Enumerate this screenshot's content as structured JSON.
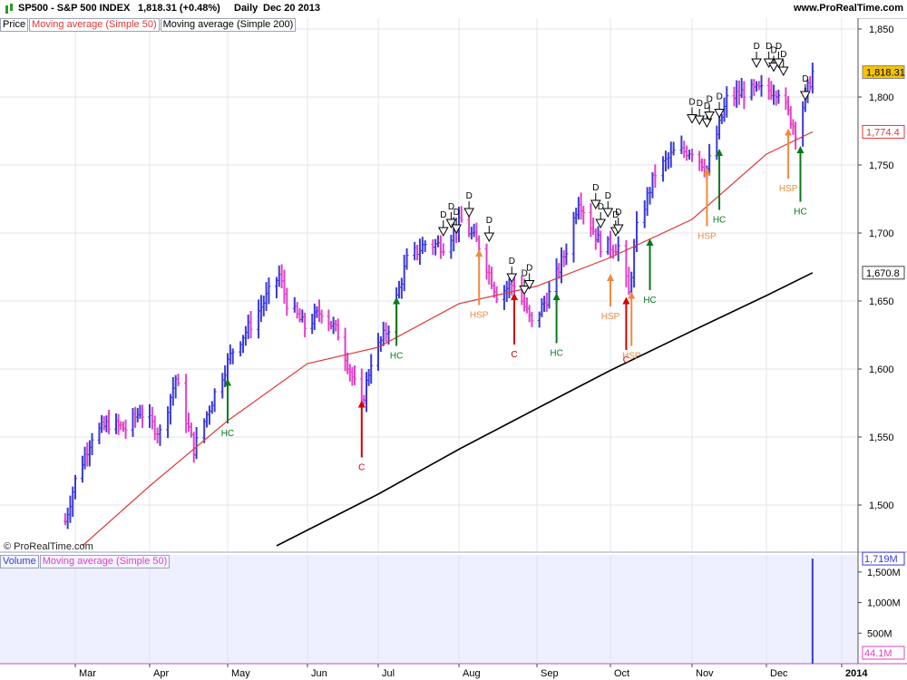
{
  "header": {
    "symbol": "SP500 - S&P 500 INDEX",
    "last": "1,818.31 (+0.48%)",
    "period": "Daily",
    "date": "Dec 20 2013",
    "site": "www.ProRealTime.com"
  },
  "legend": {
    "price": "Price",
    "ma50": "Moving average (Simple 50)",
    "ma200": "Moving average (Simple 200)",
    "volume": "Volume",
    "vol_ma": "Moving average (Simple 50)"
  },
  "watermark": "© ProRealTime.com",
  "colors": {
    "up": "#3a3ad6",
    "down": "#e040c8",
    "ma50": "#e03838",
    "ma200": "#000000",
    "hc": "#0a7a1a",
    "hsp": "#f08a40",
    "c": "#d40000",
    "vol_bg": "#eef0ff",
    "price_bg": "#ffffff"
  },
  "chart_data": [
    {
      "type": "ohlc",
      "y_ticks": [
        "1,850",
        "1,800",
        "1,750",
        "1,700",
        "1,650",
        "1,600",
        "1,550",
        "1,500"
      ],
      "y_tick_values": [
        1850,
        1800,
        1750,
        1700,
        1650,
        1600,
        1550,
        1500
      ],
      "ylim": [
        1466,
        1858
      ],
      "x_tick_labels": [
        "Mar",
        "Apr",
        "May",
        "Jun",
        "Jul",
        "Aug",
        "Sep",
        "Oct",
        "Nov",
        "Dec",
        "2014"
      ],
      "x_tick_dates": [
        "2013-03-01",
        "2013-04-01",
        "2013-05-01",
        "2013-06-01",
        "2013-07-01",
        "2013-08-01",
        "2013-09-01",
        "2013-10-01",
        "2013-11-01",
        "2013-12-01",
        "2014-01-01"
      ],
      "price_labels": [
        {
          "text": "1,818.31",
          "value": 1818.31,
          "kind": "price"
        },
        {
          "text": "1,774.4",
          "value": 1774.4,
          "kind": "ma50"
        },
        {
          "text": "1,670.8",
          "value": 1670.8,
          "kind": "ma200"
        }
      ],
      "closes": [
        {
          "date": "2013-02-25",
          "close": 1488
        },
        {
          "date": "2013-03-01",
          "close": 1518
        },
        {
          "date": "2013-03-08",
          "close": 1551
        },
        {
          "date": "2013-03-15",
          "close": 1560
        },
        {
          "date": "2013-03-22",
          "close": 1556
        },
        {
          "date": "2013-03-28",
          "close": 1569
        },
        {
          "date": "2013-04-05",
          "close": 1553
        },
        {
          "date": "2013-04-11",
          "close": 1593
        },
        {
          "date": "2013-04-18",
          "close": 1541
        },
        {
          "date": "2013-04-26",
          "close": 1582
        },
        {
          "date": "2013-05-03",
          "close": 1614
        },
        {
          "date": "2013-05-10",
          "close": 1633
        },
        {
          "date": "2013-05-21",
          "close": 1669
        },
        {
          "date": "2013-05-24",
          "close": 1649
        },
        {
          "date": "2013-05-31",
          "close": 1631
        },
        {
          "date": "2013-06-07",
          "close": 1643
        },
        {
          "date": "2013-06-14",
          "close": 1626
        },
        {
          "date": "2013-06-24",
          "close": 1573
        },
        {
          "date": "2013-06-28",
          "close": 1606
        },
        {
          "date": "2013-07-05",
          "close": 1631
        },
        {
          "date": "2013-07-12",
          "close": 1680
        },
        {
          "date": "2013-07-19",
          "close": 1692
        },
        {
          "date": "2013-07-26",
          "close": 1691
        },
        {
          "date": "2013-08-02",
          "close": 1709
        },
        {
          "date": "2013-08-09",
          "close": 1691
        },
        {
          "date": "2013-08-16",
          "close": 1655
        },
        {
          "date": "2013-08-23",
          "close": 1663
        },
        {
          "date": "2013-08-30",
          "close": 1633
        },
        {
          "date": "2013-09-06",
          "close": 1655
        },
        {
          "date": "2013-09-13",
          "close": 1688
        },
        {
          "date": "2013-09-18",
          "close": 1725
        },
        {
          "date": "2013-09-27",
          "close": 1691
        },
        {
          "date": "2013-10-04",
          "close": 1690
        },
        {
          "date": "2013-10-08",
          "close": 1655
        },
        {
          "date": "2013-10-11",
          "close": 1703
        },
        {
          "date": "2013-10-18",
          "close": 1744
        },
        {
          "date": "2013-10-25",
          "close": 1759
        },
        {
          "date": "2013-11-01",
          "close": 1761
        },
        {
          "date": "2013-11-07",
          "close": 1747
        },
        {
          "date": "2013-11-15",
          "close": 1798
        },
        {
          "date": "2013-11-22",
          "close": 1804
        },
        {
          "date": "2013-11-29",
          "close": 1805
        },
        {
          "date": "2013-12-06",
          "close": 1805
        },
        {
          "date": "2013-12-13",
          "close": 1775
        },
        {
          "date": "2013-12-20",
          "close": 1818
        }
      ],
      "ma50": [
        {
          "date": "2013-03-04",
          "value": 1470
        },
        {
          "date": "2013-04-01",
          "value": 1514
        },
        {
          "date": "2013-05-01",
          "value": 1562
        },
        {
          "date": "2013-06-01",
          "value": 1604
        },
        {
          "date": "2013-07-01",
          "value": 1616
        },
        {
          "date": "2013-08-01",
          "value": 1648
        },
        {
          "date": "2013-09-01",
          "value": 1661
        },
        {
          "date": "2013-10-01",
          "value": 1682
        },
        {
          "date": "2013-11-01",
          "value": 1710
        },
        {
          "date": "2013-12-01",
          "value": 1758
        },
        {
          "date": "2013-12-20",
          "value": 1774.4
        }
      ],
      "ma200": [
        {
          "date": "2013-05-20",
          "value": 1470
        },
        {
          "date": "2013-07-01",
          "value": 1508
        },
        {
          "date": "2013-08-01",
          "value": 1541
        },
        {
          "date": "2013-09-01",
          "value": 1571
        },
        {
          "date": "2013-10-01",
          "value": 1599
        },
        {
          "date": "2013-11-01",
          "value": 1628
        },
        {
          "date": "2013-12-01",
          "value": 1654
        },
        {
          "date": "2013-12-20",
          "value": 1670.8
        }
      ],
      "d_markers": [
        {
          "date": "2013-07-26",
          "price": 1698
        },
        {
          "date": "2013-07-29",
          "price": 1704
        },
        {
          "date": "2013-07-31",
          "price": 1700
        },
        {
          "date": "2013-08-05",
          "price": 1712
        },
        {
          "date": "2013-08-13",
          "price": 1694
        },
        {
          "date": "2013-08-22",
          "price": 1664
        },
        {
          "date": "2013-08-27",
          "price": 1655
        },
        {
          "date": "2013-08-29",
          "price": 1659
        },
        {
          "date": "2013-09-25",
          "price": 1718
        },
        {
          "date": "2013-09-27",
          "price": 1704
        },
        {
          "date": "2013-09-30",
          "price": 1712
        },
        {
          "date": "2013-10-03",
          "price": 1698
        },
        {
          "date": "2013-10-04",
          "price": 1700
        },
        {
          "date": "2013-11-01",
          "price": 1781
        },
        {
          "date": "2013-11-04",
          "price": 1780
        },
        {
          "date": "2013-11-07",
          "price": 1778
        },
        {
          "date": "2013-11-08",
          "price": 1783
        },
        {
          "date": "2013-11-12",
          "price": 1785
        },
        {
          "date": "2013-11-27",
          "price": 1822
        },
        {
          "date": "2013-12-02",
          "price": 1822
        },
        {
          "date": "2013-12-04",
          "price": 1819
        },
        {
          "date": "2013-12-06",
          "price": 1822
        },
        {
          "date": "2013-12-08",
          "price": 1816
        },
        {
          "date": "2013-12-17",
          "price": 1798
        }
      ],
      "arrows": [
        {
          "date": "2013-05-01",
          "label": "HC",
          "kind": "hc",
          "tip": 1593,
          "tail": 1560
        },
        {
          "date": "2013-06-24",
          "label": "C",
          "kind": "c",
          "tip": 1577,
          "tail": 1535
        },
        {
          "date": "2013-07-08",
          "label": "HC",
          "kind": "hc",
          "tip": 1653,
          "tail": 1617
        },
        {
          "date": "2013-08-09",
          "label": "HSP",
          "kind": "hsp",
          "tip": 1688,
          "tail": 1647
        },
        {
          "date": "2013-08-23",
          "label": "C",
          "kind": "c",
          "tip": 1656,
          "tail": 1618
        },
        {
          "date": "2013-09-09",
          "label": "HC",
          "kind": "hc",
          "tip": 1656,
          "tail": 1619
        },
        {
          "date": "2013-10-01",
          "label": "HSP",
          "kind": "hsp",
          "tip": 1670,
          "tail": 1646
        },
        {
          "date": "2013-10-07",
          "label": "C",
          "kind": "c",
          "tip": 1653,
          "tail": 1614
        },
        {
          "date": "2013-10-09",
          "label": "HSP",
          "kind": "hsp",
          "tip": 1657,
          "tail": 1617
        },
        {
          "date": "2013-10-16",
          "label": "HC",
          "kind": "hc",
          "tip": 1696,
          "tail": 1658
        },
        {
          "date": "2013-11-07",
          "label": "HSP",
          "kind": "hsp",
          "tip": 1748,
          "tail": 1705
        },
        {
          "date": "2013-11-12",
          "label": "HC",
          "kind": "hc",
          "tip": 1762,
          "tail": 1717
        },
        {
          "date": "2013-12-10",
          "label": "HSP",
          "kind": "hsp",
          "tip": 1777,
          "tail": 1740
        },
        {
          "date": "2013-12-15",
          "label": "HC",
          "kind": "hc",
          "tip": 1764,
          "tail": 1723
        }
      ]
    },
    {
      "type": "bar",
      "y_ticks": [
        "1,500M",
        "1,000M",
        "500M"
      ],
      "y_tick_values": [
        1500,
        1000,
        500
      ],
      "ylim": [
        0,
        1780
      ],
      "unit": "M",
      "last_volume_label": "1,719M",
      "vol_ma_label": "44.1M",
      "bars": [
        {
          "date": "2013-12-20",
          "value": 1719
        }
      ]
    }
  ]
}
